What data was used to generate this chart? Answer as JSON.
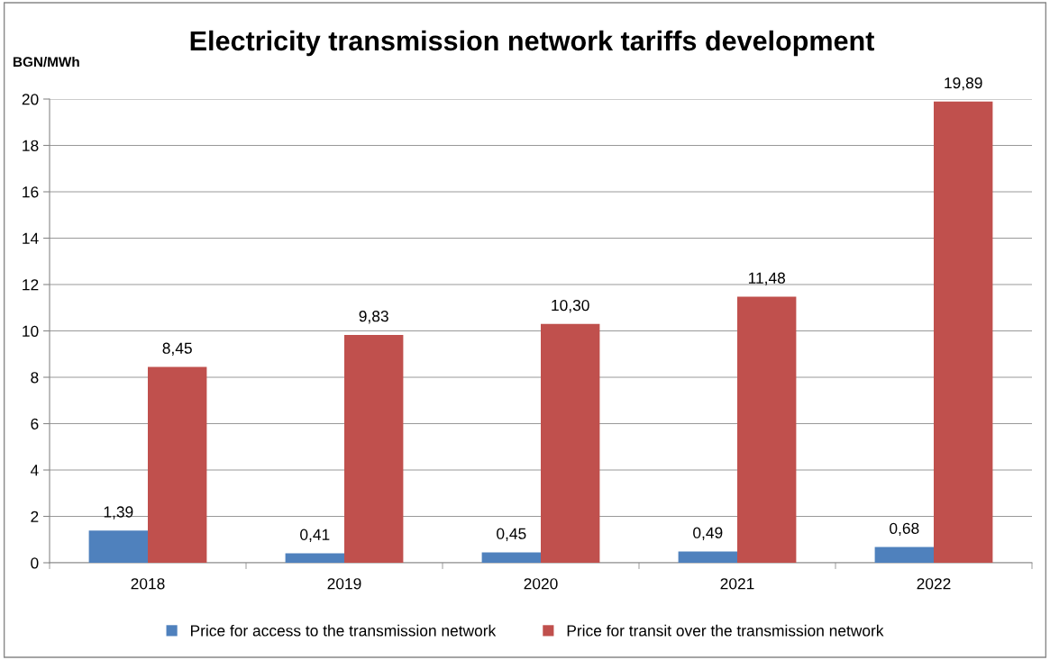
{
  "chart_data": {
    "type": "bar",
    "title": "Electricity transmission network tariffs development",
    "ylabel": "BGN/MWh",
    "categories": [
      "2018",
      "2019",
      "2020",
      "2021",
      "2022"
    ],
    "series": [
      {
        "name": "Price for access to the transmission network",
        "color": "#4f81bd",
        "values": [
          1.39,
          0.41,
          0.45,
          0.49,
          0.68
        ],
        "value_labels": [
          "1,39",
          "0,41",
          "0,45",
          "0,49",
          "0,68"
        ]
      },
      {
        "name": "Price for transit over the transmission network",
        "color": "#c0504d",
        "values": [
          8.45,
          9.83,
          10.3,
          11.48,
          19.89
        ],
        "value_labels": [
          "8,45",
          "9,83",
          "10,30",
          "11,48",
          "19,89"
        ]
      }
    ],
    "ylim": [
      0,
      20
    ],
    "yticks": [
      0,
      2,
      4,
      6,
      8,
      10,
      12,
      14,
      16,
      18,
      20
    ],
    "grid": "y",
    "legend": "bottom"
  }
}
